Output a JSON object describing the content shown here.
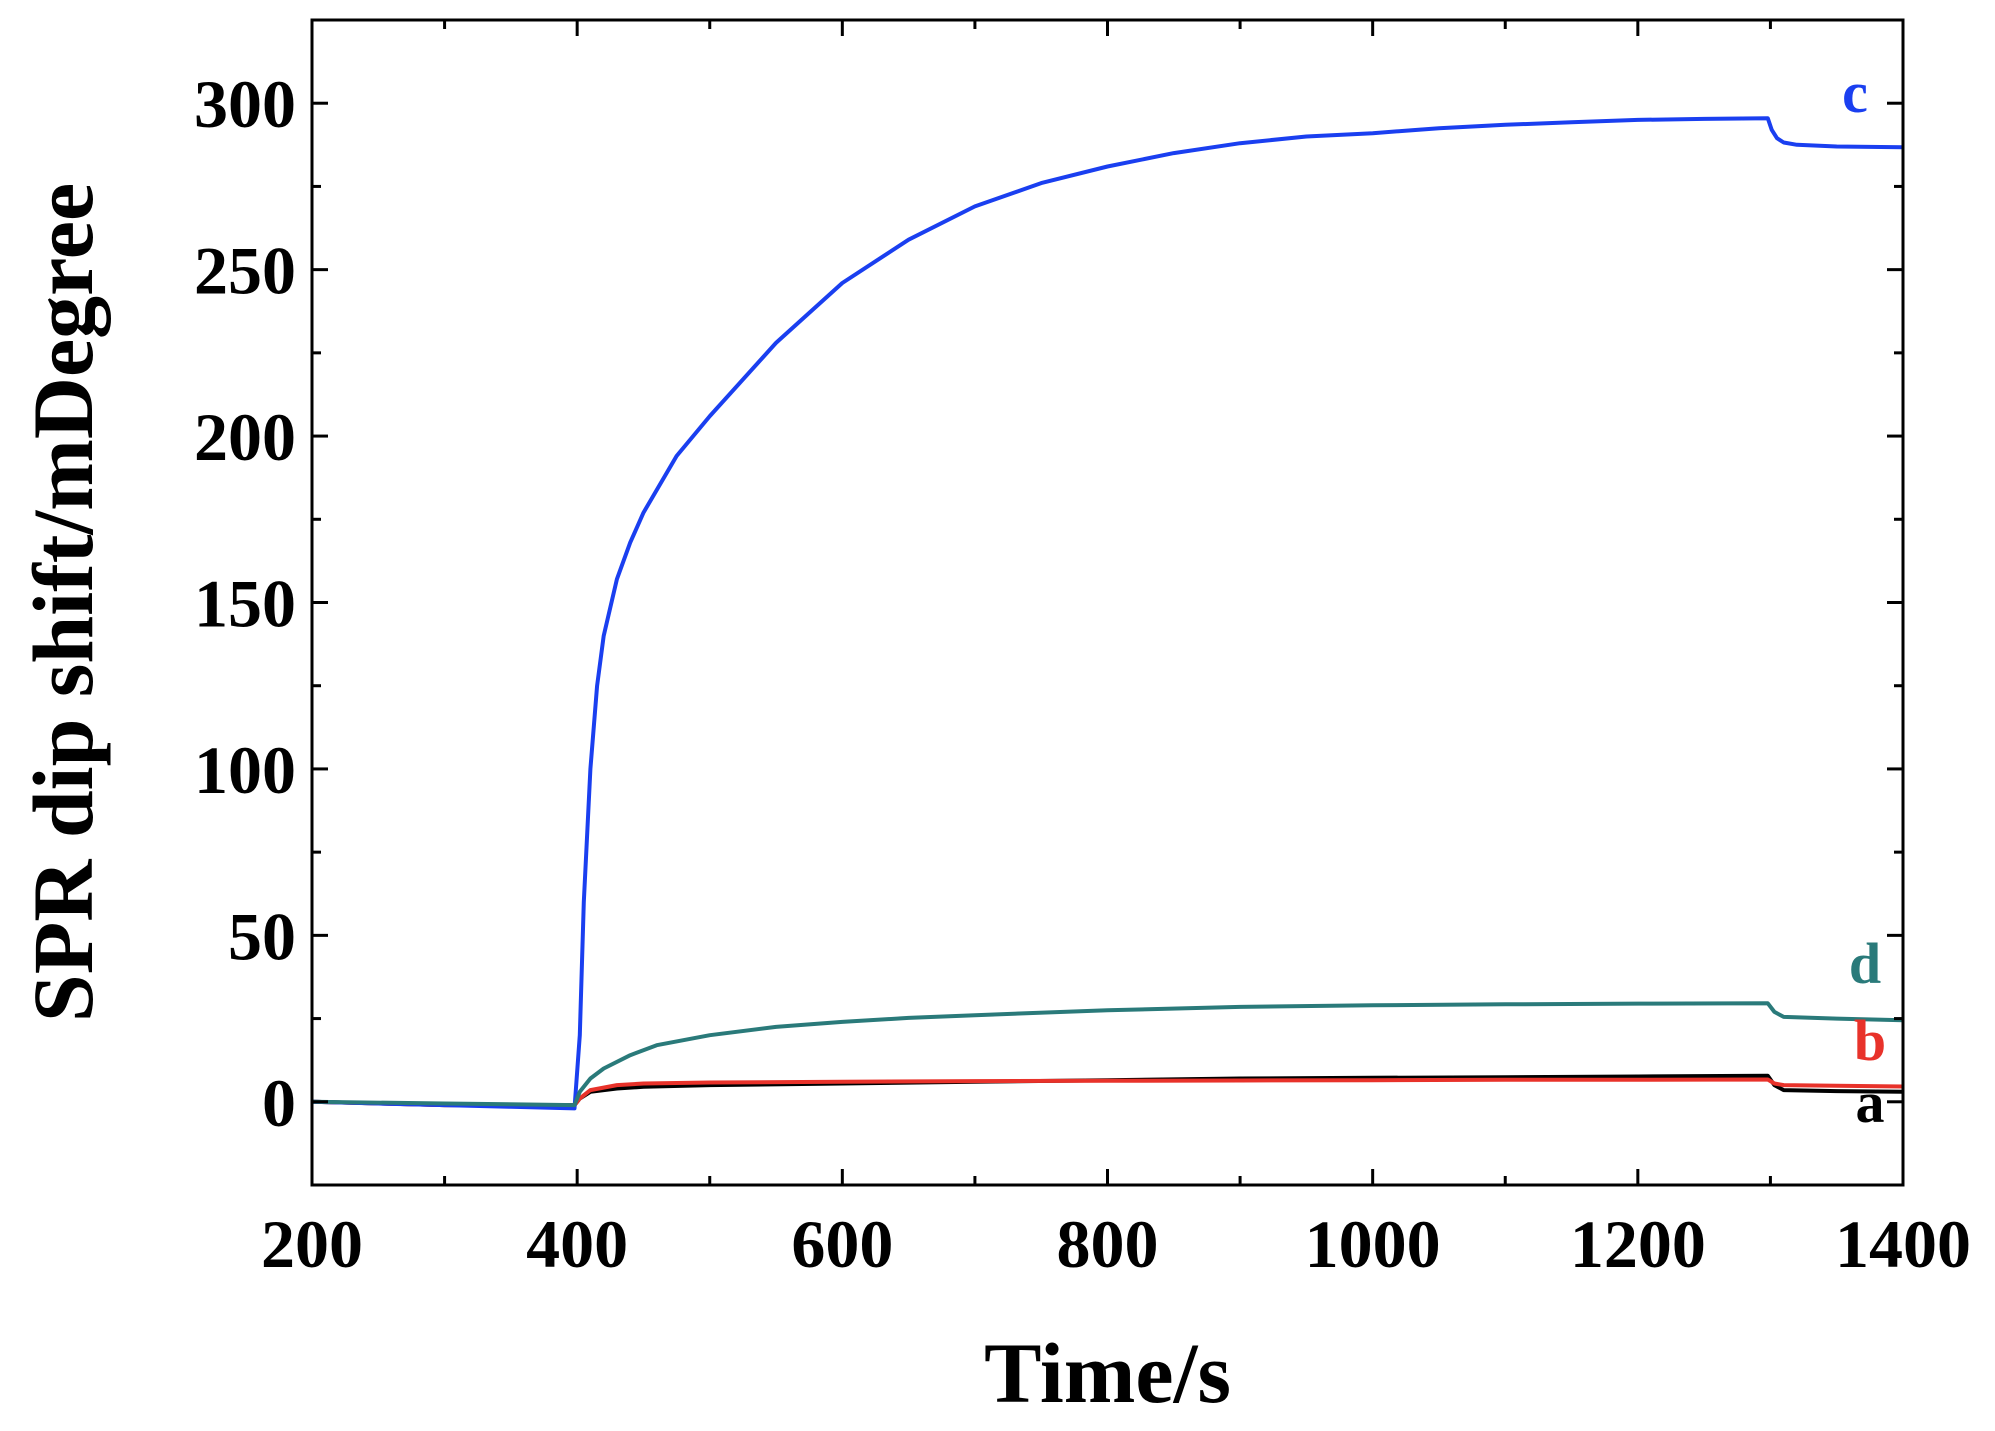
{
  "chart_data": {
    "type": "line",
    "xlabel": "Time/s",
    "ylabel": "SPR dip shift/mDegree",
    "xlim": [
      200,
      1400
    ],
    "ylim": [
      -25,
      325
    ],
    "xticks": [
      200,
      400,
      600,
      800,
      1000,
      1200,
      1400
    ],
    "xtick_labels": [
      "200",
      "400",
      "600",
      "800",
      "1000",
      "1200",
      "1400"
    ],
    "yticks": [
      0,
      50,
      100,
      150,
      200,
      250,
      300
    ],
    "ytick_labels": [
      "0",
      "50",
      "100",
      "150",
      "200",
      "250",
      "300"
    ],
    "grid": false,
    "legend": "inline labels at right end of each curve",
    "series": [
      {
        "name": "a",
        "color": "#000000",
        "x": [
          200,
          300,
          398,
          402,
          410,
          430,
          450,
          500,
          600,
          700,
          800,
          900,
          1000,
          1100,
          1200,
          1298,
          1303,
          1310,
          1350,
          1400
        ],
        "y": [
          0,
          -1,
          -1,
          1,
          3,
          4,
          4.5,
          5,
          5.5,
          6,
          6.5,
          7,
          7.2,
          7.4,
          7.6,
          7.8,
          5,
          3.5,
          3.2,
          3
        ]
      },
      {
        "name": "b",
        "color": "#e8322a",
        "x": [
          200,
          300,
          398,
          402,
          410,
          430,
          450,
          500,
          600,
          700,
          800,
          900,
          1000,
          1100,
          1200,
          1298,
          1303,
          1310,
          1350,
          1400
        ],
        "y": [
          0,
          -1,
          -1,
          1,
          3.5,
          5,
          5.5,
          5.8,
          6,
          6.2,
          6.3,
          6.4,
          6.5,
          6.6,
          6.6,
          6.7,
          5.5,
          5,
          4.8,
          4.6
        ]
      },
      {
        "name": "c",
        "color": "#1a3ff0",
        "x": [
          200,
          250,
          300,
          350,
          398,
          402,
          405,
          410,
          415,
          420,
          430,
          440,
          450,
          475,
          500,
          550,
          600,
          650,
          700,
          750,
          800,
          850,
          900,
          950,
          1000,
          1050,
          1100,
          1150,
          1200,
          1250,
          1298,
          1301,
          1305,
          1310,
          1320,
          1350,
          1400
        ],
        "y": [
          0,
          -0.5,
          -1,
          -1.5,
          -2,
          20,
          60,
          100,
          125,
          140,
          157,
          168,
          177,
          194,
          206,
          228,
          246,
          259,
          269,
          276,
          281,
          285,
          288,
          290,
          291,
          292.5,
          293.5,
          294.3,
          295,
          295.3,
          295.5,
          292,
          289.5,
          288.2,
          287.5,
          287,
          286.8
        ]
      },
      {
        "name": "d",
        "color": "#2a7a7a",
        "x": [
          200,
          300,
          398,
          402,
          410,
          420,
          440,
          460,
          500,
          550,
          600,
          650,
          700,
          800,
          900,
          1000,
          1100,
          1200,
          1298,
          1303,
          1310,
          1350,
          1400
        ],
        "y": [
          0,
          -0.5,
          -1,
          3,
          7,
          10,
          14,
          17,
          20,
          22.5,
          24,
          25.2,
          26,
          27.5,
          28.5,
          29,
          29.3,
          29.5,
          29.6,
          27,
          25.5,
          25,
          24.5
        ]
      }
    ]
  }
}
